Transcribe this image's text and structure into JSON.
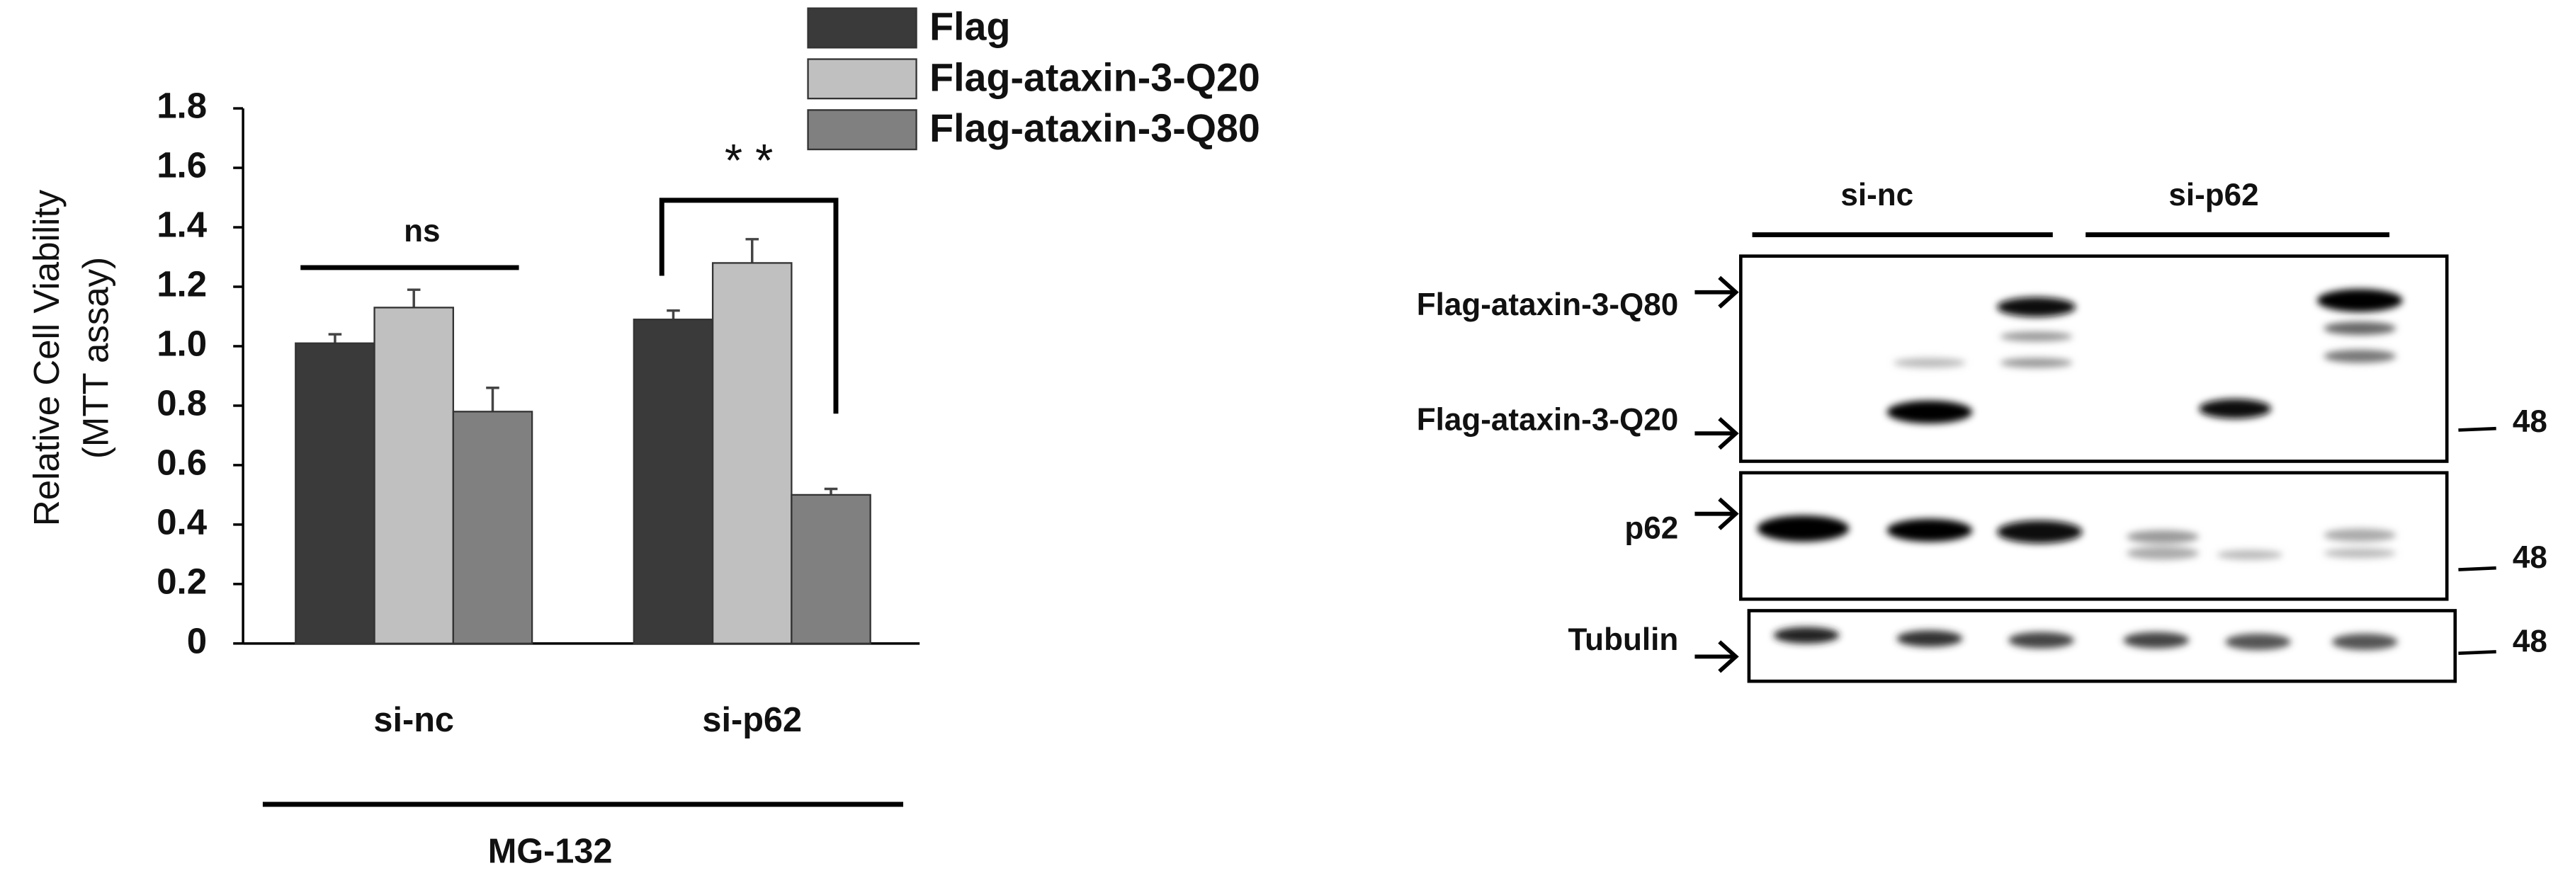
{
  "chart_data": {
    "type": "bar",
    "ylabel": [
      "Relative Cell Viability",
      "(MTT assay)"
    ],
    "categories": [
      "si-nc",
      "si-p62"
    ],
    "series": [
      {
        "name": "Flag",
        "color": "#3a3a3a",
        "values": [
          1.01,
          1.09
        ],
        "errors": [
          0.03,
          0.03
        ]
      },
      {
        "name": "Flag-ataxin-3-Q20",
        "color": "#c0c0c0",
        "values": [
          1.13,
          1.28
        ],
        "errors": [
          0.06,
          0.08
        ]
      },
      {
        "name": "Flag-ataxin-3-Q80",
        "color": "#808080",
        "values": [
          0.78,
          0.5
        ],
        "errors": [
          0.08,
          0.02
        ]
      }
    ],
    "ylim": [
      0,
      1.8
    ],
    "yticks": [
      0,
      0.2,
      0.4,
      0.6,
      0.8,
      {
        "value": 1,
        "label": "1.0"
      },
      1.2,
      1.4,
      1.6,
      1.8
    ],
    "annotations": [
      "ns",
      "* *"
    ],
    "treatment": "MG-132",
    "legend": "top-right"
  },
  "blot": {
    "lanes": [
      "si-nc",
      "si-p62"
    ],
    "rows": [
      "Flag-ataxin-3-Q80",
      "Flag-ataxin-3-Q20",
      "p62",
      "Tubulin"
    ],
    "marker": "48"
  }
}
